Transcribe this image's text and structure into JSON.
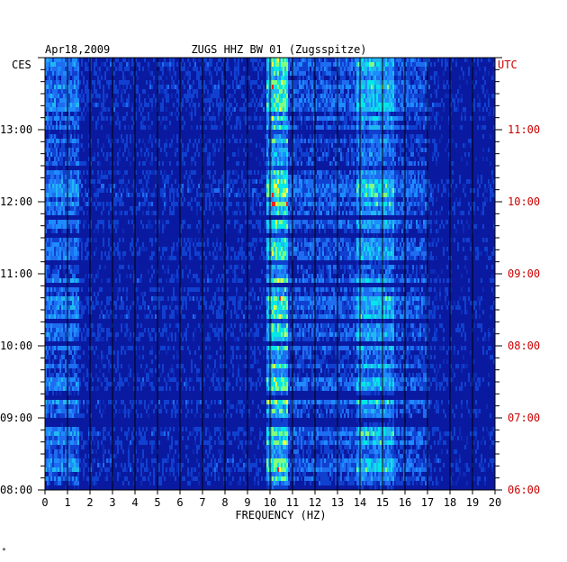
{
  "chart_data": {
    "type": "heatmap",
    "date": "Apr18,2009",
    "title": "ZUGS HHZ BW 01 (Zugsspitze)",
    "xlabel": "FREQUENCY (HZ)",
    "x_ticks": [
      "0",
      "1",
      "2",
      "3",
      "4",
      "5",
      "6",
      "7",
      "8",
      "9",
      "10",
      "11",
      "12",
      "13",
      "14",
      "15",
      "16",
      "17",
      "18",
      "19",
      "20"
    ],
    "xlim": [
      0,
      20
    ],
    "left_timezone": "CES",
    "right_timezone": "UTC",
    "left_ticks": [
      "08:00",
      "09:00",
      "10:00",
      "11:00",
      "12:00",
      "13:00"
    ],
    "right_ticks": [
      "06:00",
      "07:00",
      "08:00",
      "09:00",
      "10:00",
      "11:00"
    ],
    "time_range_ces": [
      "08:00",
      "14:00"
    ],
    "colors": {
      "background_low": "#0a1aa0",
      "mid": "#1e8cff",
      "high": "#00e8e8",
      "peak": "#ffff40",
      "extreme": "#ff2020",
      "right_axis_text": "#cc0000"
    },
    "corner_mark": "*"
  }
}
